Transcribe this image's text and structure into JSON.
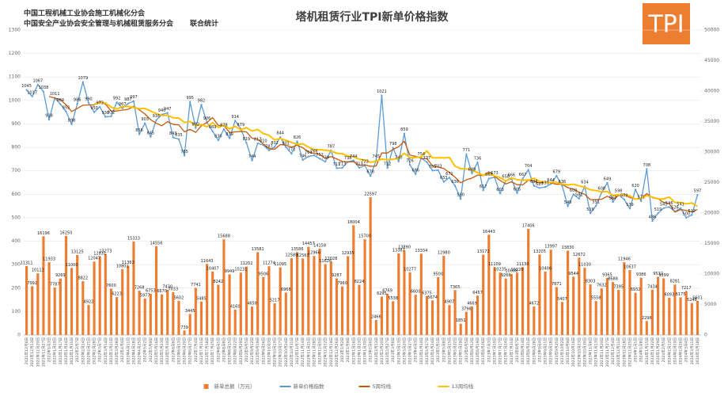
{
  "header": {
    "org1": "中国工程机械工业协会施工机械化分会",
    "org2": "中国安全产业协会安全管理与机械租赁服务分会",
    "note": "联合统计",
    "logo": "TPI"
  },
  "chart_data": {
    "type": "bar-line",
    "title": "塔机租赁行业TPI新单价格指数",
    "categories": [
      "2021年12月6日",
      "2021年12月13日",
      "2021年12月20日",
      "2021年12月27日",
      "2022年1月3日",
      "2022年1月10日",
      "2022年1月17日",
      "2022年1月24日",
      "2022年1月31日",
      "2022年2月7日",
      "2022年2月14日",
      "2022年2月21日",
      "2022年2月28日",
      "2022年3月7日",
      "2022年3月14日",
      "2022年3月21日",
      "2022年3月28日",
      "2022年4月4日",
      "2022年4月11日",
      "2022年4月18日",
      "2022年4月25日",
      "2022年5月2日",
      "2022年5月9日",
      "2022年5月16日",
      "2022年5月23日",
      "2022年5月30日",
      "2022年6月6日",
      "2022年6月13日",
      "2022年6月20日",
      "2022年6月27日",
      "2022年7月4日",
      "2022年7月11日",
      "2022年7月18日",
      "2022年7月25日",
      "2022年8月1日",
      "2022年8月8日",
      "2022年8月15日",
      "2022年8月22日",
      "2022年8月29日",
      "2022年9月5日",
      "2022年9月12日",
      "2022年9月19日",
      "2022年9月26日",
      "2022年10月3日",
      "2022年10月10日",
      "2022年10月17日",
      "2022年10月24日",
      "2022年10月31日",
      "2022年11月7日",
      "2022年11月14日",
      "2022年11月21日",
      "2022年11月28日",
      "2022年12月5日",
      "2022年12月12日",
      "2022年12月19日",
      "2022年12月26日",
      "2023年1月2日",
      "2023年1月9日",
      "2023年1月16日",
      "2023年1月23日",
      "2023年1月30日",
      "2023年2月6日",
      "2023年2月13日",
      "2023年2月20日",
      "2023年2月27日",
      "2023年3月6日",
      "2023年3月13日",
      "2023年3月20日",
      "2023年3月27日",
      "2023年4月3日",
      "2023年4月10日",
      "2023年4月17日",
      "2023年4月24日",
      "2023年5月1日",
      "2023年5月8日",
      "2023年5月15日",
      "2023年5月22日",
      "2023年5月29日",
      "2023年6月5日",
      "2023年6月12日",
      "2023年6月19日",
      "2023年6月26日",
      "2023年7月3日",
      "2023年7月10日",
      "2023年7月17日",
      "2023年7月24日",
      "2023年7月31日",
      "2023年8月7日",
      "2023年8月14日",
      "2023年8月21日",
      "2023年8月28日",
      "2023年9月4日",
      "2023年9月11日",
      "2023年9月18日",
      "2023年9月25日",
      "2023年10月2日",
      "2023年10月9日",
      "2023年10月16日",
      "2023年10月23日",
      "2023年10月30日",
      "2023年11月6日",
      "2023年11月13日",
      "2023年11月20日",
      "2023年11月27日",
      "2023年12月4日",
      "2023年12月11日",
      "2023年12月18日",
      "2023年12月25日",
      "2024年1月1日",
      "2024年1月8日",
      "2024年1月15日",
      "2024年1月22日",
      "2024年1月29日",
      "2024年2月5日",
      "2024年2月12日",
      "2024年2月19日",
      "2024年2月26日",
      "2024年3月4日",
      "2024年3月11日",
      "2024年3月18日"
    ],
    "series": [
      {
        "name": "新单总额（万元）",
        "kind": "bar",
        "axis": "y2",
        "color": "#ed7d31",
        "labels": true,
        "values": [
          11311,
          7992,
          10112,
          16196,
          11933,
          7787,
          9269,
          16250,
          11000,
          13125,
          8822,
          4922,
          12047,
          12831,
          13273,
          7600,
          6223,
          10801,
          11363,
          15333,
          7268,
          5977,
          6753,
          14556,
          6670,
          7430,
          7033,
          5602,
          739,
          3445,
          7741,
          5485,
          11643,
          10407,
          8242,
          15688,
          9949,
          4160,
          10231,
          11202,
          4658,
          13581,
          9506,
          11274,
          5217,
          11095,
          6968,
          12588,
          13586,
          12563,
          14457,
          12966,
          14158,
          11626,
          12028,
          9287,
          7960,
          12935,
          18004,
          8224,
          15700,
          22597,
          2466,
          6295,
          6769,
          5538,
          13387,
          13890,
          10277,
          6600,
          13334,
          6375,
          5674,
          9500,
          12980,
          4907,
          7365,
          1851,
          3796,
          4669,
          6457,
          13172,
          16443,
          11109,
          10235,
          9266,
          10008,
          10220,
          11130,
          17406,
          4672,
          13205,
          10406,
          13997,
          7871,
          5407,
          13830,
          9544,
          12672,
          11030,
          8303,
          5558,
          7632,
          9365,
          8688,
          7395,
          11946,
          10637,
          6932,
          9386,
          2296,
          7434,
          9532,
          9299,
          6093,
          8281,
          6175,
          7217,
          5248,
          5601
        ]
      },
      {
        "name": "新单价格指数",
        "kind": "line",
        "color": "#5b9bd5",
        "labels": true,
        "markers": true,
        "values": [
          1045,
          1017,
          1067,
          1038,
          918,
          1011,
          984,
          953,
          898,
          986,
          1079,
          990,
          950,
          973,
          930,
          932,
          992,
          967,
          987,
          997,
          856,
          903,
          845,
          916,
          940,
          947,
          843,
          835,
          765,
          995,
          882,
          982,
          906,
          869,
          830,
          878,
          839,
          914,
          879,
          819,
          744,
          817,
          810,
          787,
          802,
          844,
          801,
          773,
          826,
          746,
          761,
          766,
          752,
          739,
          787,
          711,
          713,
          738,
          744,
          713,
          723,
          678,
          745,
          1021,
          712,
          798,
          740,
          859,
          726,
          686,
          754,
          737,
          701,
          703,
          653,
          671,
          636,
          580,
          771,
          689,
          736,
          617,
          667,
          673,
          603,
          658,
          666,
          605,
          667,
          704,
          636,
          627,
          631,
          644,
          679,
          636,
          549,
          600,
          581,
          634,
          519,
          551,
          608,
          649,
          567,
          598,
          578,
          539,
          620,
          571,
          708,
          486,
          519,
          541,
          546,
          526,
          541,
          500,
          512,
          597
        ]
      },
      {
        "name": "5周均线",
        "kind": "line",
        "color": "#c55a11",
        "values": [
          null,
          null,
          null,
          null,
          1017,
          1010,
          1004,
          981,
          953,
          966,
          980,
          981,
          981,
          996,
          984,
          955,
          955,
          959,
          962,
          975,
          960,
          942,
          918,
          903,
          892,
          910,
          898,
          896,
          866,
          877,
          864,
          892,
          906,
          927,
          894,
          893,
          864,
          866,
          868,
          866,
          839,
          835,
          814,
          795,
          792,
          812,
          809,
          801,
          809,
          798,
          781,
          774,
          770,
          753,
          761,
          751,
          740,
          738,
          739,
          724,
          726,
          719,
          721,
          776,
          776,
          791,
          803,
          826,
          767,
          762,
          753,
          752,
          721,
          716,
          710,
          693,
          673,
          649,
          662,
          669,
          682,
          679,
          696,
          676,
          659,
          644,
          653,
          641,
          640,
          660,
          656,
          648,
          653,
          648,
          643,
          643,
          628,
          622,
          609,
          600,
          577,
          577,
          579,
          592,
          579,
          595,
          600,
          586,
          580,
          581,
          603,
          585,
          581,
          565,
          560,
          524,
          535,
          531,
          525,
          535
        ]
      },
      {
        "name": "13周均线",
        "kind": "line",
        "color": "#ffc000",
        "width": 2,
        "values": [
          null,
          null,
          null,
          null,
          null,
          null,
          null,
          null,
          null,
          null,
          null,
          null,
          984,
          991,
          989,
          972,
          963,
          974,
          975,
          970,
          965,
          966,
          955,
          944,
          936,
          937,
          926,
          925,
          906,
          910,
          893,
          897,
          888,
          905,
          885,
          894,
          879,
          890,
          875,
          884,
          870,
          876,
          859,
          851,
          832,
          838,
          830,
          821,
          813,
          815,
          801,
          790,
          790,
          788,
          784,
          775,
          773,
          763,
          760,
          750,
          745,
          737,
          740,
          750,
          747,
          749,
          754,
          775,
          756,
          757,
          759,
          785,
          755,
          756,
          755,
          757,
          720,
          709,
          708,
          705,
          692,
          681,
          689,
          679,
          671,
          657,
          670,
          662,
          660,
          661,
          668,
          655,
          651,
          651,
          651,
          644,
          640,
          643,
          636,
          630,
          619,
          616,
          610,
          612,
          595,
          598,
          596,
          593,
          579,
          584,
          594,
          588,
          580,
          580,
          588,
          565,
          565,
          559,
          563,
          548
        ]
      }
    ],
    "ylim": [
      0,
      1300
    ],
    "yticks": [
      0,
      100,
      200,
      300,
      400,
      500,
      600,
      700,
      800,
      900,
      1000,
      1100,
      1200,
      1300
    ],
    "y2lim": [
      0,
      50000
    ],
    "y2ticks": [
      0,
      5000,
      10000,
      15000,
      20000,
      25000,
      30000,
      35000,
      40000,
      45000,
      50000
    ],
    "grid": true,
    "legend": "bottom"
  }
}
